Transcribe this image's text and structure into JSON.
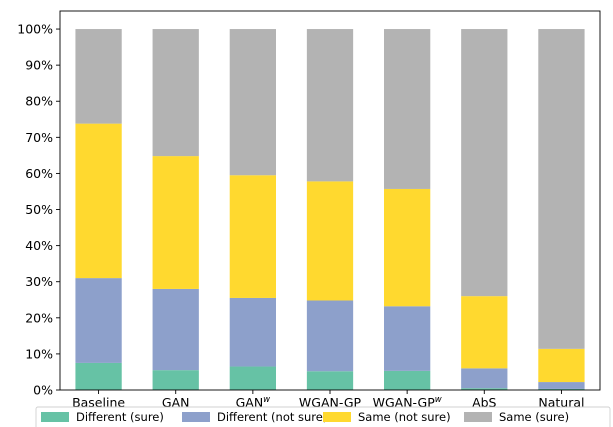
{
  "chart_data": {
    "type": "bar",
    "stacked": true,
    "categories": [
      "Baseline",
      "GAN",
      "GAN",
      "WGAN-GP",
      "WGAN-GP",
      "AbS",
      "Natural"
    ],
    "category_superscripts": [
      "",
      "",
      "w",
      "",
      "w",
      "",
      ""
    ],
    "series": [
      {
        "name": "Different (sure)",
        "color": "#66c2a5",
        "values": [
          7.5,
          5.5,
          6.5,
          5.2,
          5.3,
          0.5,
          0.3
        ]
      },
      {
        "name": "Different (not sure)",
        "color": "#8da0cb",
        "values": [
          23.5,
          22.5,
          19.0,
          19.6,
          17.9,
          5.5,
          1.9
        ]
      },
      {
        "name": "Same (not sure)",
        "color": "#ffd92f",
        "values": [
          42.8,
          36.8,
          34.0,
          33.0,
          32.5,
          20.0,
          9.2
        ]
      },
      {
        "name": "Same (sure)",
        "color": "#b3b3b3",
        "values": [
          26.2,
          35.2,
          40.5,
          42.2,
          44.3,
          74.0,
          88.6
        ]
      }
    ],
    "ylim": [
      0,
      105
    ],
    "yticks": [
      0,
      10,
      20,
      30,
      40,
      50,
      60,
      70,
      80,
      90,
      100
    ],
    "ytick_labels": [
      "0%",
      "10%",
      "20%",
      "30%",
      "40%",
      "50%",
      "60%",
      "70%",
      "80%",
      "90%",
      "100%"
    ],
    "title": "",
    "xlabel": "",
    "ylabel": "",
    "legend_position": "bottom",
    "grid": false
  }
}
